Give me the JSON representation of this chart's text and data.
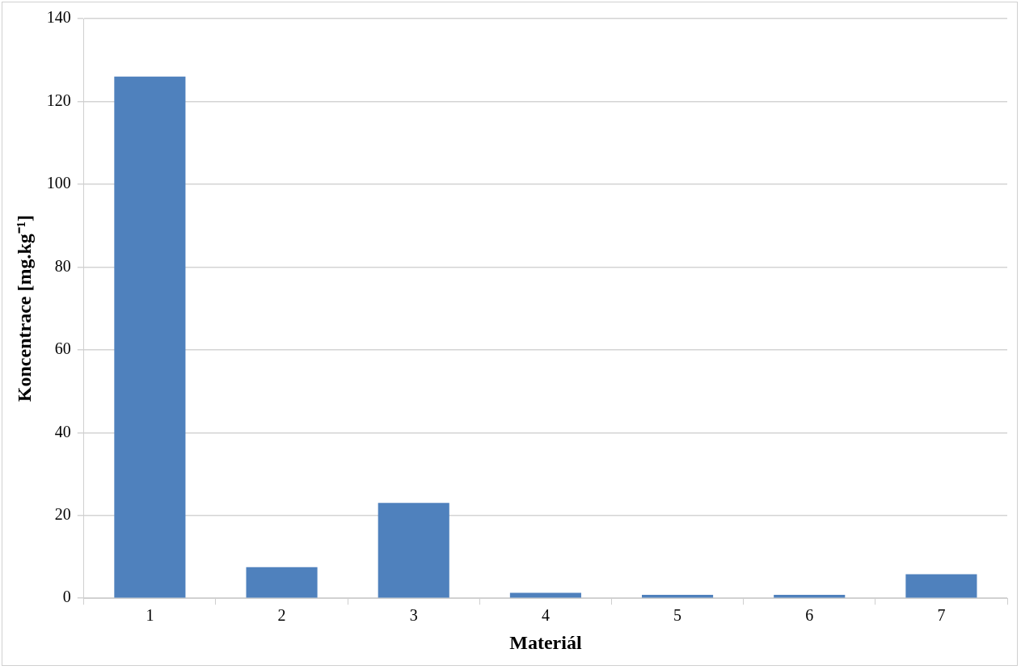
{
  "chart_data": {
    "type": "bar",
    "xlabel": "Materiál",
    "ylabel": "Koncentrace [mg.kg⁻¹]",
    "categories": [
      "1",
      "2",
      "3",
      "4",
      "5",
      "6",
      "7"
    ],
    "values": [
      126,
      7.5,
      23,
      1.3,
      0.8,
      0.8,
      5.8
    ],
    "color": "#4f81bd",
    "ylim": [
      0,
      140
    ],
    "yticks": [
      0,
      20,
      40,
      60,
      80,
      100,
      120,
      140
    ],
    "grid": "y",
    "legend": false
  }
}
